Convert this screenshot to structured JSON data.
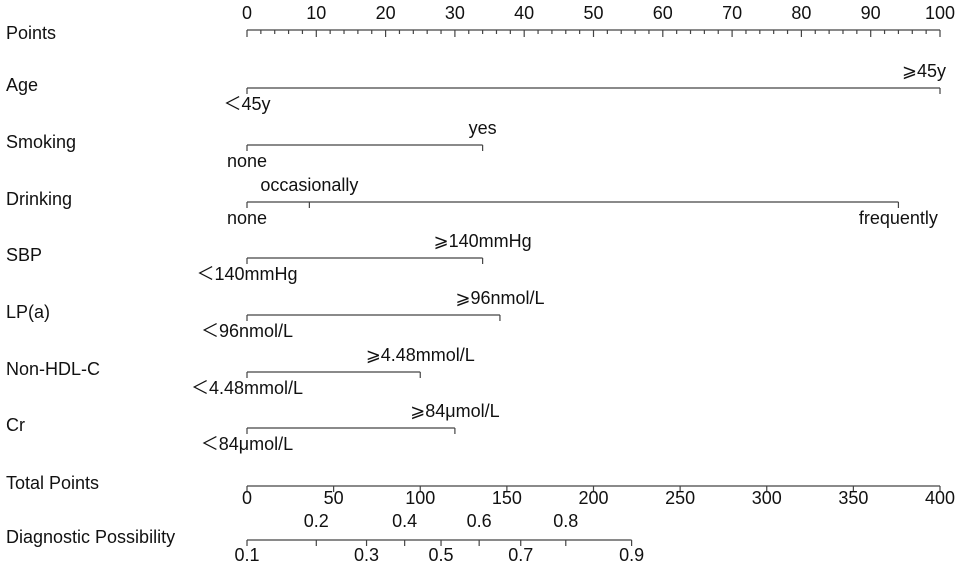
{
  "chart_data": {
    "type": "nomogram",
    "points_axis": {
      "label": "Points",
      "xlim": [
        0,
        100
      ],
      "xticks": [
        0,
        10,
        20,
        30,
        40,
        50,
        60,
        70,
        80,
        90,
        100
      ],
      "minor_ticks": [
        2,
        4,
        6,
        8,
        12,
        14,
        16,
        18,
        22,
        24,
        26,
        28,
        32,
        34,
        36,
        38,
        42,
        44,
        46,
        48,
        52,
        54,
        56,
        58,
        62,
        64,
        66,
        68,
        72,
        74,
        76,
        78,
        82,
        84,
        86,
        88,
        92,
        94,
        96,
        98
      ]
    },
    "variables": [
      {
        "name": "Age",
        "levels": [
          {
            "label": "＜45y",
            "points": 0
          },
          {
            "label": "⩾45y",
            "points": 100
          }
        ]
      },
      {
        "name": "Smoking",
        "levels": [
          {
            "label": "none",
            "points": 0
          },
          {
            "label": "yes",
            "points": 34
          }
        ]
      },
      {
        "name": "Drinking",
        "levels": [
          {
            "label": "none",
            "points": 0
          },
          {
            "label": "occasionally",
            "points": 9
          },
          {
            "label": "frequently",
            "points": 94
          }
        ]
      },
      {
        "name": "SBP",
        "levels": [
          {
            "label": "＜140mmHg",
            "points": 0
          },
          {
            "label": "⩾140mmHg",
            "points": 34
          }
        ]
      },
      {
        "name": "LP(a)",
        "levels": [
          {
            "label": "＜96nmol/L",
            "points": 0
          },
          {
            "label": "⩾96nmol/L",
            "points": 36.5
          }
        ]
      },
      {
        "name": "Non-HDL-C",
        "levels": [
          {
            "label": "＜4.48mmol/L",
            "points": 0
          },
          {
            "label": "⩾4.48mmol/L",
            "points": 25
          }
        ]
      },
      {
        "name": "Cr",
        "levels": [
          {
            "label": "＜84μmol/L",
            "points": 0
          },
          {
            "label": "⩾84μmol/L",
            "points": 30
          }
        ]
      }
    ],
    "total_points": {
      "label": "Total Points",
      "xlim": [
        0,
        400
      ],
      "xticks": [
        0,
        50,
        100,
        150,
        200,
        250,
        300,
        350,
        400
      ]
    },
    "diagnostic_possibility": {
      "label": "Diagnostic Possibility",
      "ticks": [
        {
          "value": 0,
          "label": "0.1"
        },
        {
          "value": 40,
          "label": "0.2"
        },
        {
          "value": 69,
          "label": "0.3"
        },
        {
          "value": 91,
          "label": "0.4"
        },
        {
          "value": 112,
          "label": "0.5"
        },
        {
          "value": 134,
          "label": "0.6"
        },
        {
          "value": 158,
          "label": "0.7"
        },
        {
          "value": 184,
          "label": "0.8"
        },
        {
          "value": 222,
          "label": "0.9"
        }
      ]
    }
  }
}
